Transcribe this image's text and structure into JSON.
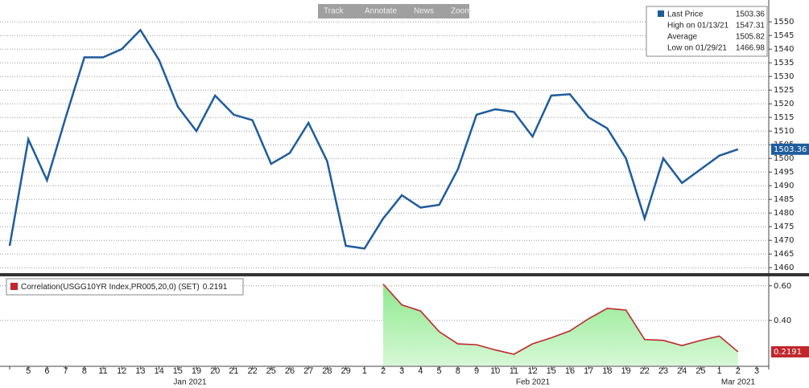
{
  "toolbar": [
    "Track",
    "Annotate",
    "News",
    "Zoom"
  ],
  "chart_data": [
    {
      "type": "line",
      "categories": [
        null,
        "5",
        "6",
        "7",
        "8",
        "11",
        "12",
        "13",
        "14",
        "15",
        "19",
        "20",
        "21",
        "22",
        "25",
        "26",
        "27",
        "28",
        "29",
        "1",
        "2",
        "3",
        "4",
        "5",
        "8",
        "9",
        "10",
        "11",
        "12",
        "15",
        "16",
        "17",
        "18",
        "19",
        "22",
        "23",
        "24",
        "25",
        "1",
        "2",
        "3"
      ],
      "month_labels": [
        "Jan 2021",
        "Feb 2021",
        "Mar 2021"
      ],
      "series": [
        {
          "name": "Last Price",
          "color": "#1f5c9c",
          "values": [
            1468,
            1507,
            1492,
            1515,
            1537,
            1537,
            1540,
            1547,
            1536,
            1519,
            1510,
            1523,
            1516,
            1514,
            1498,
            1502,
            1513,
            1499,
            1468,
            1467,
            1478,
            1486.5,
            1482,
            1483,
            1496,
            1516,
            1518,
            1517,
            1508,
            1523,
            1523.5,
            1515,
            1511,
            1500,
            1478,
            1500,
            1491,
            1496,
            1501,
            1503.36,
            null
          ]
        }
      ],
      "legend_items": [
        {
          "label": "Last Price",
          "value": 1503.36
        },
        {
          "label": "High on 01/13/21",
          "value": 1547.31
        },
        {
          "label": "Average",
          "value": 1505.82
        },
        {
          "label": "Low on 01/29/21",
          "value": 1466.98
        }
      ],
      "ylim": [
        1458,
        1558
      ],
      "yticks": [
        1460,
        1465,
        1470,
        1475,
        1480,
        1485,
        1490,
        1495,
        1500,
        1505,
        1510,
        1515,
        1520,
        1525,
        1530,
        1535,
        1540,
        1545,
        1550
      ],
      "grid": true
    },
    {
      "type": "area",
      "series": [
        {
          "name": "Correlation(USGG10YR Index,PR005,20,0) (SET)",
          "color": "#c0272d",
          "fill": "#a6f0a6",
          "values": [
            null,
            null,
            null,
            null,
            null,
            null,
            null,
            null,
            null,
            null,
            null,
            null,
            null,
            null,
            null,
            null,
            null,
            null,
            null,
            null,
            0.61,
            0.49,
            0.455,
            0.335,
            0.265,
            0.26,
            0.23,
            0.205,
            0.265,
            0.3,
            0.34,
            0.41,
            0.47,
            0.46,
            0.29,
            0.285,
            0.255,
            0.285,
            0.31,
            0.2191,
            null
          ]
        }
      ],
      "ylim": [
        0.14,
        0.65
      ],
      "yticks": [
        {
          "value": 0.4,
          "label": "0.40"
        },
        {
          "value": 0.6,
          "label": "0.60"
        }
      ],
      "grid": true
    }
  ]
}
